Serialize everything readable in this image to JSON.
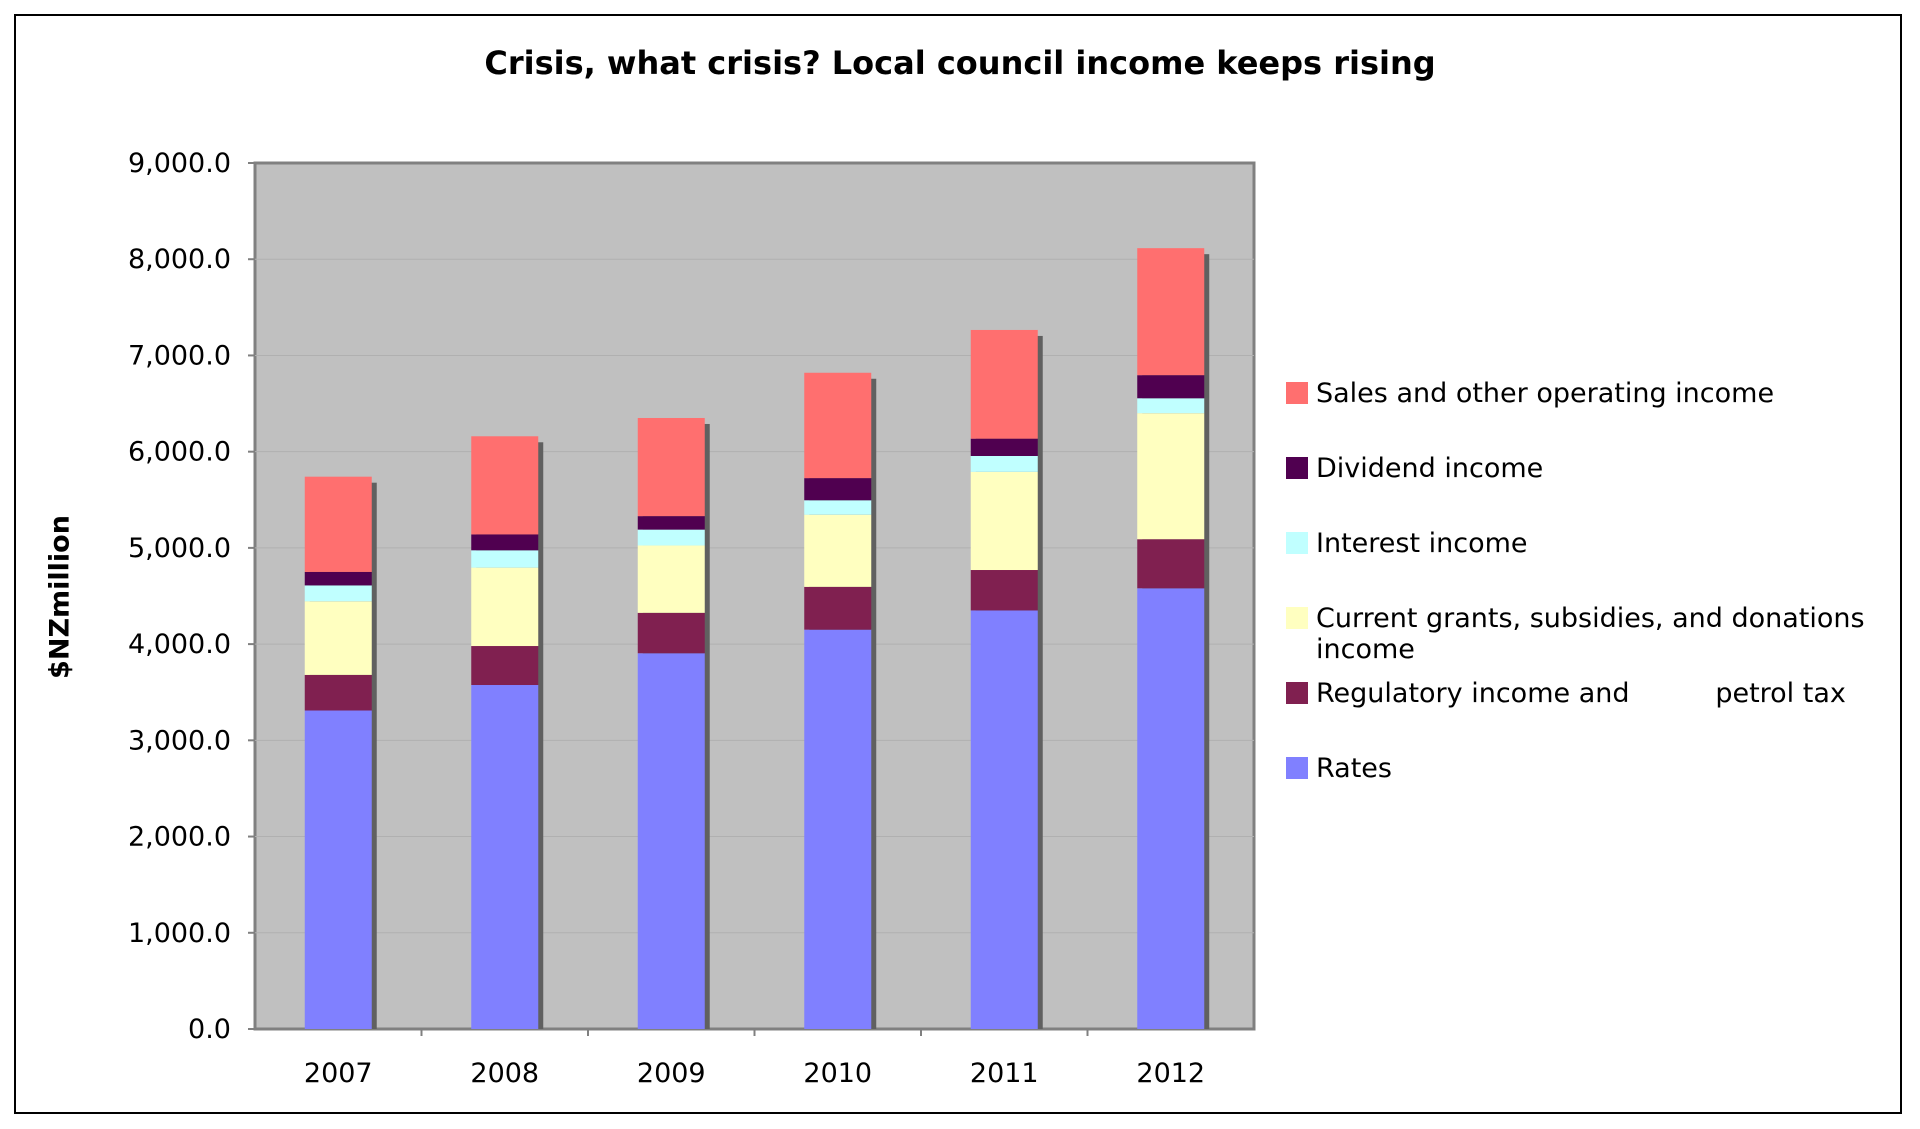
{
  "chart_data": {
    "type": "bar",
    "stacked": true,
    "title": "Crisis, what crisis? Local council income keeps rising",
    "xlabel": "",
    "ylabel": "$NZmillion",
    "ylim": [
      0,
      9000
    ],
    "yticks": [
      "0.0",
      "1,000.0",
      "2,000.0",
      "3,000.0",
      "4,000.0",
      "5,000.0",
      "6,000.0",
      "7,000.0",
      "8,000.0",
      "9,000.0"
    ],
    "grid": true,
    "legend_position": "right",
    "plot_background": "#c0c0c0",
    "categories": [
      "2007",
      "2008",
      "2009",
      "2010",
      "2011",
      "2012"
    ],
    "series": [
      {
        "name": "Rates",
        "color": "#8080ff",
        "values": [
          3310,
          3575,
          3905,
          4150,
          4350,
          4580
        ]
      },
      {
        "name": "Regulatory income and          petrol tax",
        "color": "#802050",
        "values": [
          370,
          405,
          420,
          445,
          420,
          510
        ]
      },
      {
        "name": "Current grants, subsidies, and donations income",
        "color": "#ffffc0",
        "values": [
          765,
          815,
          700,
          750,
          1020,
          1310
        ]
      },
      {
        "name": "Interest income",
        "color": "#c0ffff",
        "values": [
          165,
          180,
          165,
          150,
          165,
          155
        ]
      },
      {
        "name": "Dividend income",
        "color": "#500050",
        "values": [
          140,
          165,
          140,
          230,
          180,
          240
        ]
      },
      {
        "name": "Sales and other operating income",
        "color": "#ff6f6f",
        "values": [
          990,
          1020,
          1020,
          1095,
          1130,
          1320
        ]
      }
    ]
  }
}
